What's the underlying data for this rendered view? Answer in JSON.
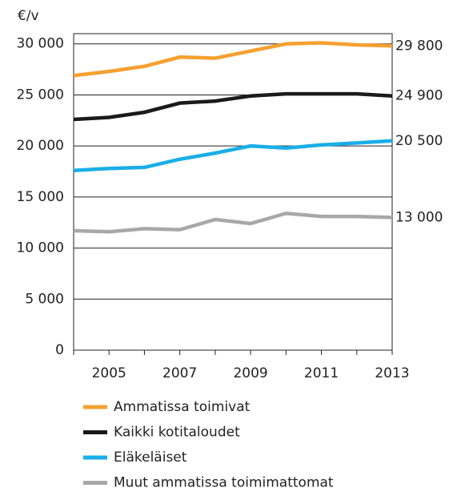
{
  "chart_data": {
    "type": "line",
    "y_label": "€/v",
    "x": [
      2004,
      2005,
      2006,
      2007,
      2008,
      2009,
      2010,
      2011,
      2012,
      2013
    ],
    "xlim": [
      2004,
      2013
    ],
    "xticks": [
      2005,
      2007,
      2009,
      2011,
      2013
    ],
    "ylim": [
      0,
      31000
    ],
    "yticks": [
      0,
      {
        "value": 5000,
        "label": "5 000"
      },
      {
        "value": 10000,
        "label": "10 000"
      },
      {
        "value": 15000,
        "label": "15 000"
      },
      {
        "value": 20000,
        "label": "20 000"
      },
      {
        "value": 25000,
        "label": "25 000"
      },
      {
        "value": 30000,
        "label": "30 000"
      }
    ],
    "grid": true,
    "legend": "bottom",
    "series": [
      {
        "name": "Ammatissa toimivat",
        "color": "#f5a030",
        "values": [
          26900,
          27300,
          27800,
          28700,
          28600,
          29300,
          30000,
          30100,
          29900,
          29800
        ],
        "value_labels": [
          null,
          null,
          null,
          null,
          null,
          null,
          null,
          null,
          null,
          "29 800"
        ]
      },
      {
        "name": "Kaikki kotitaloudet",
        "color": "#1a1a1a",
        "values": [
          22600,
          22800,
          23300,
          24200,
          24400,
          24900,
          25100,
          25100,
          25100,
          24900
        ],
        "value_labels": [
          null,
          null,
          null,
          null,
          null,
          null,
          null,
          null,
          null,
          "24 900"
        ]
      },
      {
        "name": "Eläkeläiset",
        "color": "#19aee8",
        "values": [
          17600,
          17800,
          17900,
          18700,
          19300,
          20000,
          19800,
          20100,
          20300,
          20500
        ],
        "value_labels": [
          null,
          null,
          null,
          null,
          null,
          null,
          null,
          null,
          null,
          "20 500"
        ]
      },
      {
        "name": "Muut ammatissa toimimattomat",
        "color": "#a8a8a8",
        "values": [
          11700,
          11600,
          11900,
          11800,
          12800,
          12400,
          13400,
          13100,
          13100,
          13000
        ],
        "value_labels": [
          null,
          null,
          null,
          null,
          null,
          null,
          null,
          null,
          null,
          "13 000"
        ]
      }
    ]
  }
}
